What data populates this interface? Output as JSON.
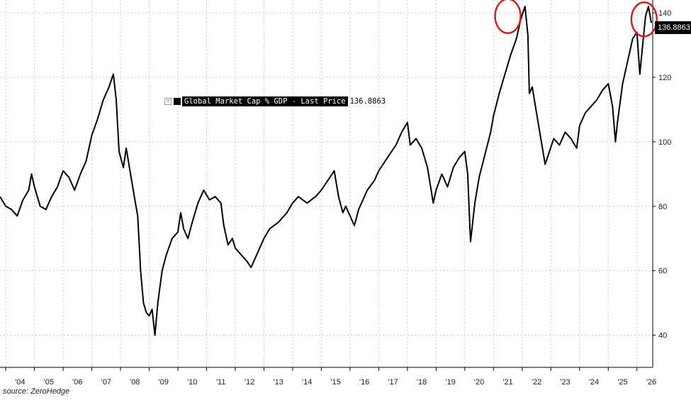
{
  "chart_data": {
    "type": "line",
    "legend_label": "Global Market Cap % GDP - Last Price",
    "last_value_label": "136.8863",
    "last_value": 136.8863,
    "x_ticks": [
      "'04",
      "'05",
      "'06",
      "'07",
      "'08",
      "'09",
      "'10",
      "'11",
      "'12",
      "'13",
      "'14",
      "'15",
      "'16",
      "'17",
      "'18",
      "'19",
      "'20",
      "'21",
      "'22",
      "'23",
      "'24",
      "'25",
      "'26"
    ],
    "y_ticks": [
      40,
      60,
      80,
      100,
      120,
      140
    ],
    "ylim": [
      30,
      144
    ],
    "xlim": [
      2003.8,
      2026.55
    ],
    "grid": true,
    "legend_position": "top-center",
    "line_color": "#000000",
    "annotation_color": "#cc2222",
    "annotations": [
      {
        "shape": "ellipse",
        "x": 2021.5,
        "y": 139
      },
      {
        "shape": "ellipse",
        "x": 2026.25,
        "y": 138
      }
    ],
    "series": [
      {
        "values": [
          [
            2003.8,
            83
          ],
          [
            2004.0,
            80
          ],
          [
            2004.2,
            79
          ],
          [
            2004.4,
            77
          ],
          [
            2004.6,
            82
          ],
          [
            2004.8,
            85
          ],
          [
            2004.9,
            90
          ],
          [
            2005.0,
            86
          ],
          [
            2005.2,
            80
          ],
          [
            2005.4,
            79
          ],
          [
            2005.6,
            83
          ],
          [
            2005.8,
            86
          ],
          [
            2006.0,
            91
          ],
          [
            2006.2,
            89
          ],
          [
            2006.4,
            85
          ],
          [
            2006.6,
            90
          ],
          [
            2006.8,
            94
          ],
          [
            2007.0,
            102
          ],
          [
            2007.2,
            107
          ],
          [
            2007.4,
            113
          ],
          [
            2007.6,
            117
          ],
          [
            2007.75,
            121
          ],
          [
            2007.85,
            113
          ],
          [
            2007.95,
            97
          ],
          [
            2008.1,
            92
          ],
          [
            2008.2,
            98
          ],
          [
            2008.35,
            90
          ],
          [
            2008.5,
            82
          ],
          [
            2008.6,
            77
          ],
          [
            2008.7,
            60
          ],
          [
            2008.8,
            50
          ],
          [
            2008.9,
            47
          ],
          [
            2009.0,
            46
          ],
          [
            2009.1,
            48
          ],
          [
            2009.2,
            40
          ],
          [
            2009.3,
            50
          ],
          [
            2009.45,
            60
          ],
          [
            2009.6,
            65
          ],
          [
            2009.8,
            70
          ],
          [
            2010.0,
            72
          ],
          [
            2010.1,
            78
          ],
          [
            2010.2,
            73
          ],
          [
            2010.35,
            70
          ],
          [
            2010.5,
            75
          ],
          [
            2010.7,
            81
          ],
          [
            2010.9,
            85
          ],
          [
            2011.1,
            82
          ],
          [
            2011.3,
            83
          ],
          [
            2011.5,
            81
          ],
          [
            2011.6,
            74
          ],
          [
            2011.75,
            68
          ],
          [
            2011.9,
            70
          ],
          [
            2012.0,
            67
          ],
          [
            2012.2,
            65
          ],
          [
            2012.4,
            63
          ],
          [
            2012.55,
            61
          ],
          [
            2012.8,
            66
          ],
          [
            2013.0,
            70
          ],
          [
            2013.2,
            73
          ],
          [
            2013.5,
            75
          ],
          [
            2013.8,
            78
          ],
          [
            2014.0,
            81
          ],
          [
            2014.2,
            83
          ],
          [
            2014.5,
            81
          ],
          [
            2014.8,
            83
          ],
          [
            2015.0,
            85
          ],
          [
            2015.3,
            89
          ],
          [
            2015.45,
            91
          ],
          [
            2015.6,
            83
          ],
          [
            2015.75,
            78
          ],
          [
            2015.85,
            80
          ],
          [
            2016.0,
            77
          ],
          [
            2016.15,
            74
          ],
          [
            2016.3,
            79
          ],
          [
            2016.6,
            85
          ],
          [
            2016.85,
            88
          ],
          [
            2017.0,
            91
          ],
          [
            2017.3,
            95
          ],
          [
            2017.6,
            99
          ],
          [
            2017.8,
            103
          ],
          [
            2018.0,
            106
          ],
          [
            2018.1,
            99
          ],
          [
            2018.3,
            101
          ],
          [
            2018.5,
            98
          ],
          [
            2018.7,
            92
          ],
          [
            2018.9,
            81
          ],
          [
            2019.0,
            85
          ],
          [
            2019.2,
            90
          ],
          [
            2019.4,
            86
          ],
          [
            2019.6,
            92
          ],
          [
            2019.8,
            95
          ],
          [
            2020.0,
            97
          ],
          [
            2020.1,
            90
          ],
          [
            2020.2,
            69
          ],
          [
            2020.35,
            81
          ],
          [
            2020.5,
            89
          ],
          [
            2020.7,
            96
          ],
          [
            2020.9,
            103
          ],
          [
            2021.0,
            108
          ],
          [
            2021.2,
            115
          ],
          [
            2021.4,
            121
          ],
          [
            2021.6,
            127
          ],
          [
            2021.8,
            132
          ],
          [
            2021.95,
            138
          ],
          [
            2022.1,
            142
          ],
          [
            2022.2,
            133
          ],
          [
            2022.25,
            115
          ],
          [
            2022.35,
            117
          ],
          [
            2022.5,
            109
          ],
          [
            2022.65,
            101
          ],
          [
            2022.8,
            93
          ],
          [
            2022.95,
            97
          ],
          [
            2023.1,
            101
          ],
          [
            2023.3,
            99
          ],
          [
            2023.5,
            103
          ],
          [
            2023.7,
            101
          ],
          [
            2023.9,
            98
          ],
          [
            2024.0,
            105
          ],
          [
            2024.2,
            109
          ],
          [
            2024.4,
            111
          ],
          [
            2024.6,
            113
          ],
          [
            2024.8,
            116
          ],
          [
            2025.0,
            118
          ],
          [
            2025.15,
            111
          ],
          [
            2025.25,
            100
          ],
          [
            2025.32,
            106
          ],
          [
            2025.5,
            118
          ],
          [
            2025.7,
            126
          ],
          [
            2025.85,
            132
          ],
          [
            2026.0,
            134
          ],
          [
            2026.1,
            121
          ],
          [
            2026.2,
            130
          ],
          [
            2026.3,
            139
          ],
          [
            2026.4,
            142
          ],
          [
            2026.5,
            136.9
          ]
        ]
      }
    ]
  },
  "source_text": "source: ZeroHedge"
}
